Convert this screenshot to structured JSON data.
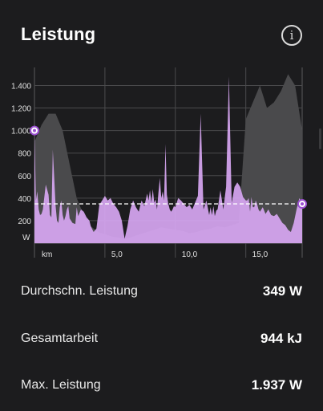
{
  "header": {
    "title": "Leistung",
    "info_icon_glyph": "i"
  },
  "chart_data": {
    "type": "area",
    "x_label": "km",
    "y_unit_label": "W",
    "y_ticks": [
      200,
      400,
      600,
      800,
      1000,
      1200,
      1400
    ],
    "y_tick_labels": [
      "200",
      "400",
      "600",
      "800",
      "1.000",
      "1.200",
      "1.400"
    ],
    "x_ticks": [
      5,
      10,
      15
    ],
    "x_tick_labels": [
      "5,0",
      "10,0",
      "15,0"
    ],
    "xlim": [
      0,
      19
    ],
    "ylim": [
      0,
      1560
    ],
    "average_line": 349,
    "grid": true,
    "series": [
      {
        "color": "#d7a6f2",
        "x": [
          0.0,
          0.1,
          0.2,
          0.3,
          0.4,
          0.5,
          0.6,
          0.8,
          1.0,
          1.1,
          1.2,
          1.3,
          1.5,
          1.6,
          1.7,
          1.8,
          1.9,
          2.0,
          2.1,
          2.2,
          2.3,
          2.4,
          2.5,
          2.7,
          2.9,
          3.0,
          3.1,
          3.3,
          3.5,
          3.7,
          3.9,
          4.0,
          4.2,
          4.4,
          4.6,
          4.8,
          5.0,
          5.2,
          5.4,
          5.6,
          5.8,
          6.0,
          6.2,
          6.4,
          6.6,
          6.8,
          7.0,
          7.2,
          7.4,
          7.6,
          7.8,
          8.0,
          8.1,
          8.2,
          8.3,
          8.4,
          8.5,
          8.6,
          8.7,
          8.8,
          8.9,
          9.0,
          9.1,
          9.2,
          9.3,
          9.4,
          9.5,
          9.6,
          9.7,
          9.8,
          9.9,
          10.0,
          10.2,
          10.4,
          10.6,
          10.8,
          11.0,
          11.2,
          11.4,
          11.6,
          11.8,
          12.0,
          12.2,
          12.4,
          12.5,
          12.6,
          12.7,
          12.8,
          12.9,
          13.0,
          13.2,
          13.4,
          13.6,
          13.8,
          14.0,
          14.2,
          14.4,
          14.6,
          14.8,
          15.0,
          15.1,
          15.2,
          15.3,
          15.4,
          15.5,
          15.6,
          15.7,
          15.8,
          15.9,
          16.0,
          16.2,
          16.4,
          16.6,
          16.8,
          17.0,
          17.2,
          17.4,
          17.6,
          17.8,
          18.0,
          18.2,
          18.4,
          18.6,
          18.8,
          19.0
        ],
        "y": [
          1000,
          380,
          460,
          300,
          250,
          260,
          300,
          520,
          430,
          250,
          230,
          830,
          330,
          200,
          180,
          320,
          380,
          250,
          200,
          240,
          300,
          330,
          220,
          180,
          170,
          320,
          240,
          300,
          280,
          230,
          200,
          150,
          100,
          130,
          340,
          380,
          420,
          380,
          400,
          350,
          320,
          280,
          200,
          40,
          150,
          300,
          380,
          320,
          280,
          380,
          330,
          440,
          380,
          470,
          360,
          480,
          360,
          390,
          300,
          450,
          580,
          400,
          460,
          380,
          880,
          430,
          350,
          300,
          280,
          300,
          330,
          320,
          400,
          380,
          350,
          320,
          340,
          300,
          360,
          420,
          1150,
          300,
          380,
          250,
          320,
          250,
          330,
          240,
          290,
          300,
          470,
          300,
          500,
          1480,
          360,
          500,
          540,
          500,
          410,
          380,
          380,
          400,
          280,
          410,
          320,
          320,
          380,
          350,
          300,
          280,
          320,
          260,
          300,
          250,
          240,
          260,
          220,
          180,
          160,
          120,
          100,
          180,
          300,
          400,
          340
        ],
        "label_visible": false
      },
      {
        "color": "#4a4a4c",
        "x": [
          0.0,
          0.5,
          1.0,
          1.5,
          2.0,
          2.5,
          3.0,
          3.5,
          4.0,
          4.5,
          5.0,
          5.5,
          6.0,
          6.5,
          7.0,
          7.5,
          8.0,
          8.5,
          9.0,
          9.5,
          10.0,
          10.5,
          11.0,
          11.5,
          12.0,
          12.5,
          13.0,
          13.5,
          14.0,
          14.5,
          15.0,
          15.5,
          16.0,
          16.5,
          17.0,
          17.5,
          18.0,
          18.5,
          19.0
        ],
        "y": [
          900,
          1050,
          1150,
          1150,
          1000,
          700,
          400,
          250,
          150,
          100,
          80,
          60,
          50,
          40,
          60,
          80,
          100,
          120,
          140,
          130,
          120,
          110,
          90,
          100,
          120,
          130,
          150,
          140,
          160,
          180,
          1100,
          1250,
          1400,
          1200,
          1250,
          1350,
          1500,
          1400,
          1000
        ],
        "label_visible": false
      }
    ],
    "markers": [
      {
        "x": 0,
        "y": 1000
      },
      {
        "x": 19,
        "y": 349
      }
    ]
  },
  "stats": [
    {
      "label": "Durchschn. Leistung",
      "value": "349 W"
    },
    {
      "label": "Gesamtarbeit",
      "value": "944 kJ"
    },
    {
      "label": "Max. Leistung",
      "value": "1.937 W"
    }
  ]
}
